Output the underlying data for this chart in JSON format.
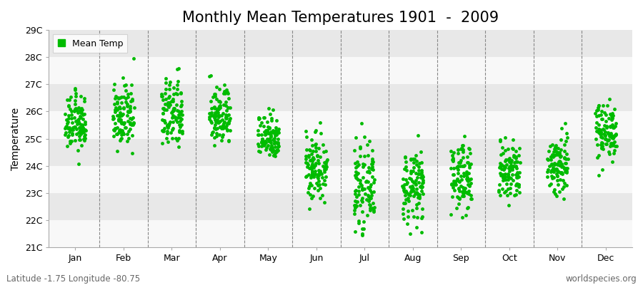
{
  "title": "Monthly Mean Temperatures 1901  -  2009",
  "ylabel": "Temperature",
  "xlabel_labels": [
    "Jan",
    "Feb",
    "Mar",
    "Apr",
    "May",
    "Jun",
    "Jul",
    "Aug",
    "Sep",
    "Oct",
    "Nov",
    "Dec"
  ],
  "subtitle_left": "Latitude -1.75 Longitude -80.75",
  "subtitle_right": "worldspecies.org",
  "legend_label": "Mean Temp",
  "ylim": [
    21,
    29
  ],
  "yticks": [
    21,
    22,
    23,
    24,
    25,
    26,
    27,
    28,
    29
  ],
  "ytick_labels": [
    "21C",
    "22C",
    "23C",
    "24C",
    "25C",
    "26C",
    "27C",
    "28C",
    "29C"
  ],
  "dot_color": "#00bb00",
  "background_color": "#ffffff",
  "plot_bg_color": "#ffffff",
  "band_color_light": "#e8e8e8",
  "band_color_white": "#f8f8f8",
  "monthly_means": [
    25.55,
    25.8,
    25.9,
    25.85,
    25.1,
    24.0,
    23.2,
    23.2,
    23.6,
    23.75,
    24.05,
    25.3
  ],
  "monthly_stds": [
    0.5,
    0.55,
    0.65,
    0.55,
    0.42,
    0.65,
    0.7,
    0.65,
    0.62,
    0.58,
    0.6,
    0.52
  ],
  "n_years": 109,
  "title_fontsize": 15,
  "axis_fontsize": 10,
  "tick_fontsize": 9,
  "legend_fontsize": 9,
  "marker_size": 3.5,
  "jitter": 0.22
}
